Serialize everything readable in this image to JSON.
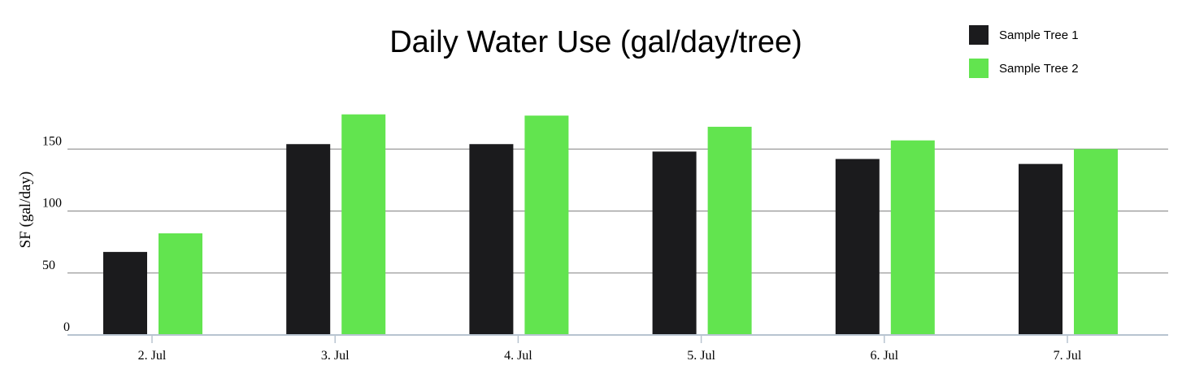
{
  "chart_data": {
    "type": "bar",
    "title": "Daily Water Use (gal/day/tree)",
    "xlabel": "",
    "ylabel": "SF (gal/day)",
    "categories": [
      "2. Jul",
      "3. Jul",
      "4. Jul",
      "5. Jul",
      "6. Jul",
      "7. Jul"
    ],
    "series": [
      {
        "name": "Sample Tree 1",
        "color": "#1b1b1d",
        "values": [
          67,
          154,
          154,
          148,
          142,
          138
        ]
      },
      {
        "name": "Sample Tree 2",
        "color": "#62e44f",
        "values": [
          82,
          178,
          177,
          168,
          157,
          150
        ]
      }
    ],
    "yticks": [
      0,
      50,
      100,
      150
    ],
    "ylim": [
      0,
      185
    ],
    "grid": true,
    "legend_position": "top-right"
  }
}
